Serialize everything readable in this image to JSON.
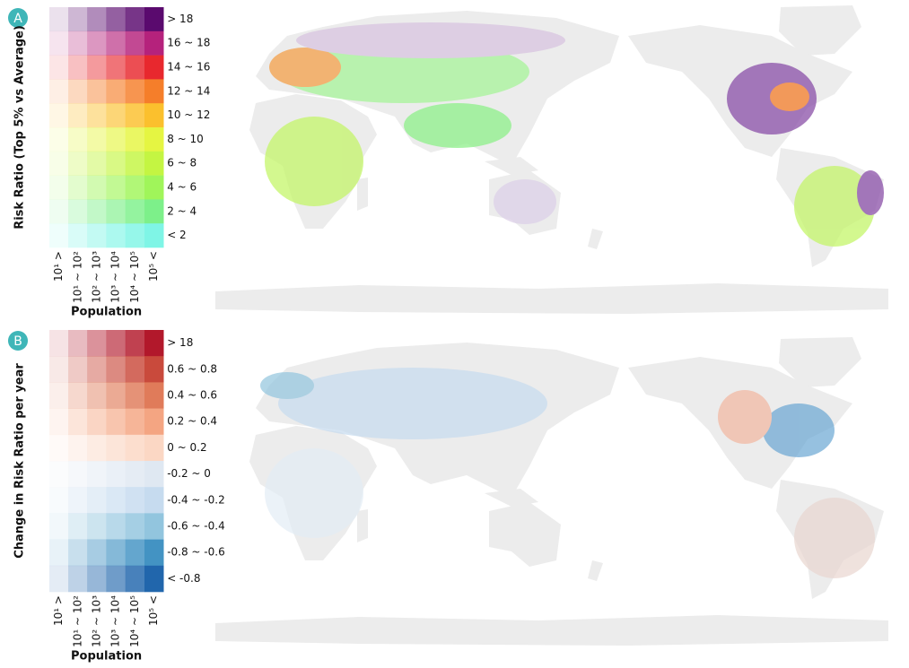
{
  "panels": [
    {
      "label": "A",
      "y_title": "Risk Ratio (Top 5% vs Average)",
      "x_title": "Population",
      "population": [
        "10¹ >",
        "10¹ ~ 10²",
        "10² ~ 10³",
        "10³ ~ 10⁴",
        "10⁴ ~ 10⁵",
        "10⁵ <"
      ],
      "rows": [
        {
          "label": "> 18",
          "color": "#5a0a6e"
        },
        {
          "label": "16 ~ 18",
          "color": "#b5227c"
        },
        {
          "label": "14 ~ 16",
          "color": "#e8282e"
        },
        {
          "label": "12 ~ 14",
          "color": "#f57e2a"
        },
        {
          "label": "10 ~ 12",
          "color": "#fbc02d"
        },
        {
          "label": "8 ~ 10",
          "color": "#e5f542"
        },
        {
          "label": "6 ~ 8",
          "color": "#c4f542"
        },
        {
          "label": "4 ~ 6",
          "color": "#a0f55a"
        },
        {
          "label": "2 ~ 4",
          "color": "#7df08a"
        },
        {
          "label": "< 2",
          "color": "#7ff5e6"
        }
      ]
    },
    {
      "label": "B",
      "y_title": "Change in Risk Ratio per year",
      "x_title": "Population",
      "population": [
        "10¹ >",
        "10¹ ~ 10²",
        "10² ~ 10³",
        "10³ ~ 10⁴",
        "10⁴ ~ 10⁵",
        "10⁵ <"
      ],
      "rows": [
        {
          "label": "> 18",
          "color": "#b2182b"
        },
        {
          "label": "0.6 ~ 0.8",
          "color": "#c94a3c"
        },
        {
          "label": "0.4 ~ 0.6",
          "color": "#e07b5a"
        },
        {
          "label": "0.2 ~ 0.4",
          "color": "#f4a582"
        },
        {
          "label": "0 ~ 0.2",
          "color": "#fbd7c4"
        },
        {
          "label": "-0.2 ~ 0",
          "color": "#dfe8f2"
        },
        {
          "label": "-0.4 ~ -0.2",
          "color": "#c6dbef"
        },
        {
          "label": "-0.6 ~ -0.4",
          "color": "#92c5de"
        },
        {
          "label": "-0.8 ~ -0.6",
          "color": "#4393c3"
        },
        {
          "label": "< -0.8",
          "color": "#2166ac"
        }
      ]
    }
  ]
}
